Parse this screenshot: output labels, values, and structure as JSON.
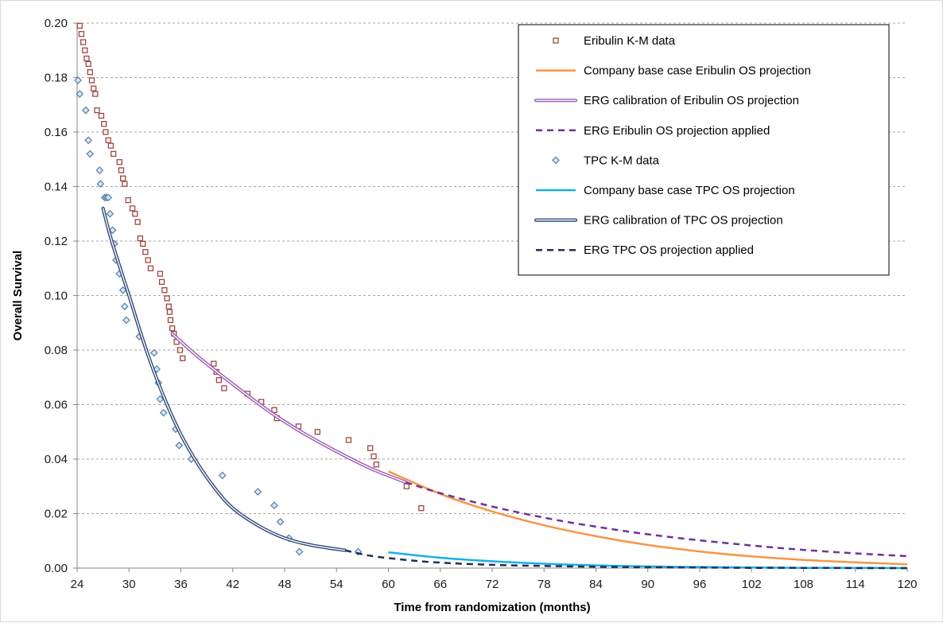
{
  "chart_data": {
    "type": "scatter",
    "title": "",
    "xlabel": "Time from randomization (months)",
    "ylabel": "Overall Survival",
    "xlim": [
      24,
      120
    ],
    "ylim": [
      0,
      0.2
    ],
    "x_ticks": [
      24,
      30,
      36,
      42,
      48,
      54,
      60,
      66,
      72,
      78,
      84,
      90,
      96,
      102,
      108,
      114,
      120
    ],
    "y_ticks": [
      "0.00",
      "0.02",
      "0.04",
      "0.06",
      "0.08",
      "0.10",
      "0.12",
      "0.14",
      "0.16",
      "0.18",
      "0.20"
    ],
    "grid": "horizontal dashed",
    "legend_position": "top-right",
    "series": [
      {
        "name": "Eribulin K-M data",
        "kind": "markers",
        "marker": "square",
        "color": "#a0463e",
        "points": [
          [
            24.3,
            0.199
          ],
          [
            24.5,
            0.196
          ],
          [
            24.7,
            0.193
          ],
          [
            24.9,
            0.19
          ],
          [
            25.1,
            0.187
          ],
          [
            25.3,
            0.185
          ],
          [
            25.5,
            0.182
          ],
          [
            25.7,
            0.179
          ],
          [
            25.9,
            0.176
          ],
          [
            26.1,
            0.174
          ],
          [
            26.3,
            0.168
          ],
          [
            26.8,
            0.166
          ],
          [
            27.1,
            0.163
          ],
          [
            27.3,
            0.16
          ],
          [
            27.6,
            0.157
          ],
          [
            27.9,
            0.155
          ],
          [
            28.2,
            0.152
          ],
          [
            28.9,
            0.149
          ],
          [
            29.1,
            0.146
          ],
          [
            29.3,
            0.143
          ],
          [
            29.5,
            0.141
          ],
          [
            29.9,
            0.135
          ],
          [
            30.4,
            0.132
          ],
          [
            30.7,
            0.13
          ],
          [
            31.0,
            0.127
          ],
          [
            31.3,
            0.121
          ],
          [
            31.6,
            0.119
          ],
          [
            31.9,
            0.116
          ],
          [
            32.2,
            0.113
          ],
          [
            32.5,
            0.11
          ],
          [
            33.6,
            0.108
          ],
          [
            33.8,
            0.105
          ],
          [
            34.1,
            0.102
          ],
          [
            34.4,
            0.099
          ],
          [
            34.6,
            0.096
          ],
          [
            34.7,
            0.094
          ],
          [
            34.8,
            0.091
          ],
          [
            35.0,
            0.088
          ],
          [
            35.2,
            0.086
          ],
          [
            35.5,
            0.083
          ],
          [
            35.9,
            0.08
          ],
          [
            36.2,
            0.077
          ],
          [
            39.8,
            0.075
          ],
          [
            40.1,
            0.072
          ],
          [
            40.4,
            0.069
          ],
          [
            41.0,
            0.066
          ],
          [
            43.7,
            0.064
          ],
          [
            45.3,
            0.061
          ],
          [
            46.8,
            0.058
          ],
          [
            47.1,
            0.055
          ],
          [
            49.6,
            0.052
          ],
          [
            51.8,
            0.05
          ],
          [
            55.4,
            0.047
          ],
          [
            57.9,
            0.044
          ],
          [
            58.3,
            0.041
          ],
          [
            58.6,
            0.038
          ],
          [
            62.1,
            0.03
          ],
          [
            63.8,
            0.022
          ]
        ]
      },
      {
        "name": "Company base case Eribulin OS projection",
        "kind": "line",
        "style": "solid",
        "color": "#f79646",
        "points": [
          [
            60,
            0.0355
          ],
          [
            66,
            0.0272
          ],
          [
            72,
            0.0208
          ],
          [
            78,
            0.0157
          ],
          [
            84,
            0.0117
          ],
          [
            90,
            0.0085
          ],
          [
            96,
            0.0061
          ],
          [
            102,
            0.0043
          ],
          [
            108,
            0.003
          ],
          [
            114,
            0.0021
          ],
          [
            120,
            0.0014
          ]
        ]
      },
      {
        "name": "ERG calibration of Eribulin OS projection",
        "kind": "line",
        "style": "double",
        "color": "#9b59b6",
        "points": [
          [
            35,
            0.086
          ],
          [
            38,
            0.0775
          ],
          [
            42,
            0.0675
          ],
          [
            46,
            0.058
          ],
          [
            50,
            0.0498
          ],
          [
            54,
            0.0428
          ],
          [
            58,
            0.0365
          ],
          [
            62,
            0.0315
          ]
        ]
      },
      {
        "name": "ERG Eribulin OS projection applied",
        "kind": "line",
        "style": "dashed",
        "color": "#7030a0",
        "points": [
          [
            62,
            0.0315
          ],
          [
            66,
            0.0275
          ],
          [
            72,
            0.0226
          ],
          [
            78,
            0.0185
          ],
          [
            84,
            0.0152
          ],
          [
            90,
            0.0124
          ],
          [
            96,
            0.0102
          ],
          [
            102,
            0.0083
          ],
          [
            108,
            0.0067
          ],
          [
            114,
            0.0054
          ],
          [
            120,
            0.0044
          ]
        ]
      },
      {
        "name": "TPC K-M data",
        "kind": "markers",
        "marker": "diamond",
        "color": "#5b86b0",
        "points": [
          [
            24.1,
            0.179
          ],
          [
            24.3,
            0.174
          ],
          [
            25.0,
            0.168
          ],
          [
            25.3,
            0.157
          ],
          [
            25.5,
            0.152
          ],
          [
            26.6,
            0.146
          ],
          [
            26.7,
            0.141
          ],
          [
            27.2,
            0.136
          ],
          [
            27.4,
            0.136
          ],
          [
            27.6,
            0.136
          ],
          [
            27.8,
            0.13
          ],
          [
            28.1,
            0.124
          ],
          [
            28.3,
            0.119
          ],
          [
            28.5,
            0.113
          ],
          [
            28.9,
            0.108
          ],
          [
            29.3,
            0.102
          ],
          [
            29.5,
            0.096
          ],
          [
            29.7,
            0.091
          ],
          [
            31.2,
            0.085
          ],
          [
            32.9,
            0.079
          ],
          [
            33.2,
            0.073
          ],
          [
            33.4,
            0.068
          ],
          [
            33.6,
            0.062
          ],
          [
            34.0,
            0.057
          ],
          [
            35.4,
            0.051
          ],
          [
            35.8,
            0.045
          ],
          [
            37.2,
            0.04
          ],
          [
            40.8,
            0.034
          ],
          [
            44.9,
            0.028
          ],
          [
            46.8,
            0.023
          ],
          [
            47.5,
            0.017
          ],
          [
            48.5,
            0.011
          ],
          [
            49.7,
            0.006
          ],
          [
            56.5,
            0.006
          ]
        ]
      },
      {
        "name": "Company base case TPC OS projection",
        "kind": "line",
        "style": "solid",
        "color": "#17b0e6",
        "points": [
          [
            60,
            0.0058
          ],
          [
            66,
            0.0038
          ],
          [
            72,
            0.0025
          ],
          [
            78,
            0.0016
          ],
          [
            84,
            0.001
          ],
          [
            90,
            0.0006
          ],
          [
            96,
            0.0004
          ],
          [
            102,
            0.0002
          ],
          [
            108,
            0.0001
          ],
          [
            114,
            0.0001
          ],
          [
            120,
            0.0
          ]
        ]
      },
      {
        "name": "ERG calibration of TPC OS projection",
        "kind": "line",
        "style": "double",
        "color": "#2e4a7a",
        "points": [
          [
            27,
            0.132
          ],
          [
            28,
            0.12
          ],
          [
            30,
            0.1
          ],
          [
            32,
            0.08
          ],
          [
            34,
            0.063
          ],
          [
            36,
            0.049
          ],
          [
            38,
            0.038
          ],
          [
            40,
            0.029
          ],
          [
            42,
            0.022
          ],
          [
            45,
            0.0155
          ],
          [
            48,
            0.011
          ],
          [
            51,
            0.0085
          ],
          [
            55,
            0.0065
          ]
        ]
      },
      {
        "name": "ERG TPC OS projection applied",
        "kind": "line",
        "style": "dashed",
        "color": "#1f2f5a",
        "points": [
          [
            55,
            0.0065
          ],
          [
            58,
            0.0045
          ],
          [
            62,
            0.003
          ],
          [
            66,
            0.002
          ],
          [
            72,
            0.0012
          ],
          [
            78,
            0.0008
          ],
          [
            84,
            0.0005
          ],
          [
            90,
            0.0003
          ],
          [
            96,
            0.0002
          ],
          [
            102,
            0.0001
          ],
          [
            108,
            0.0001
          ],
          [
            114,
            0.0
          ],
          [
            120,
            0.0
          ]
        ]
      }
    ]
  }
}
